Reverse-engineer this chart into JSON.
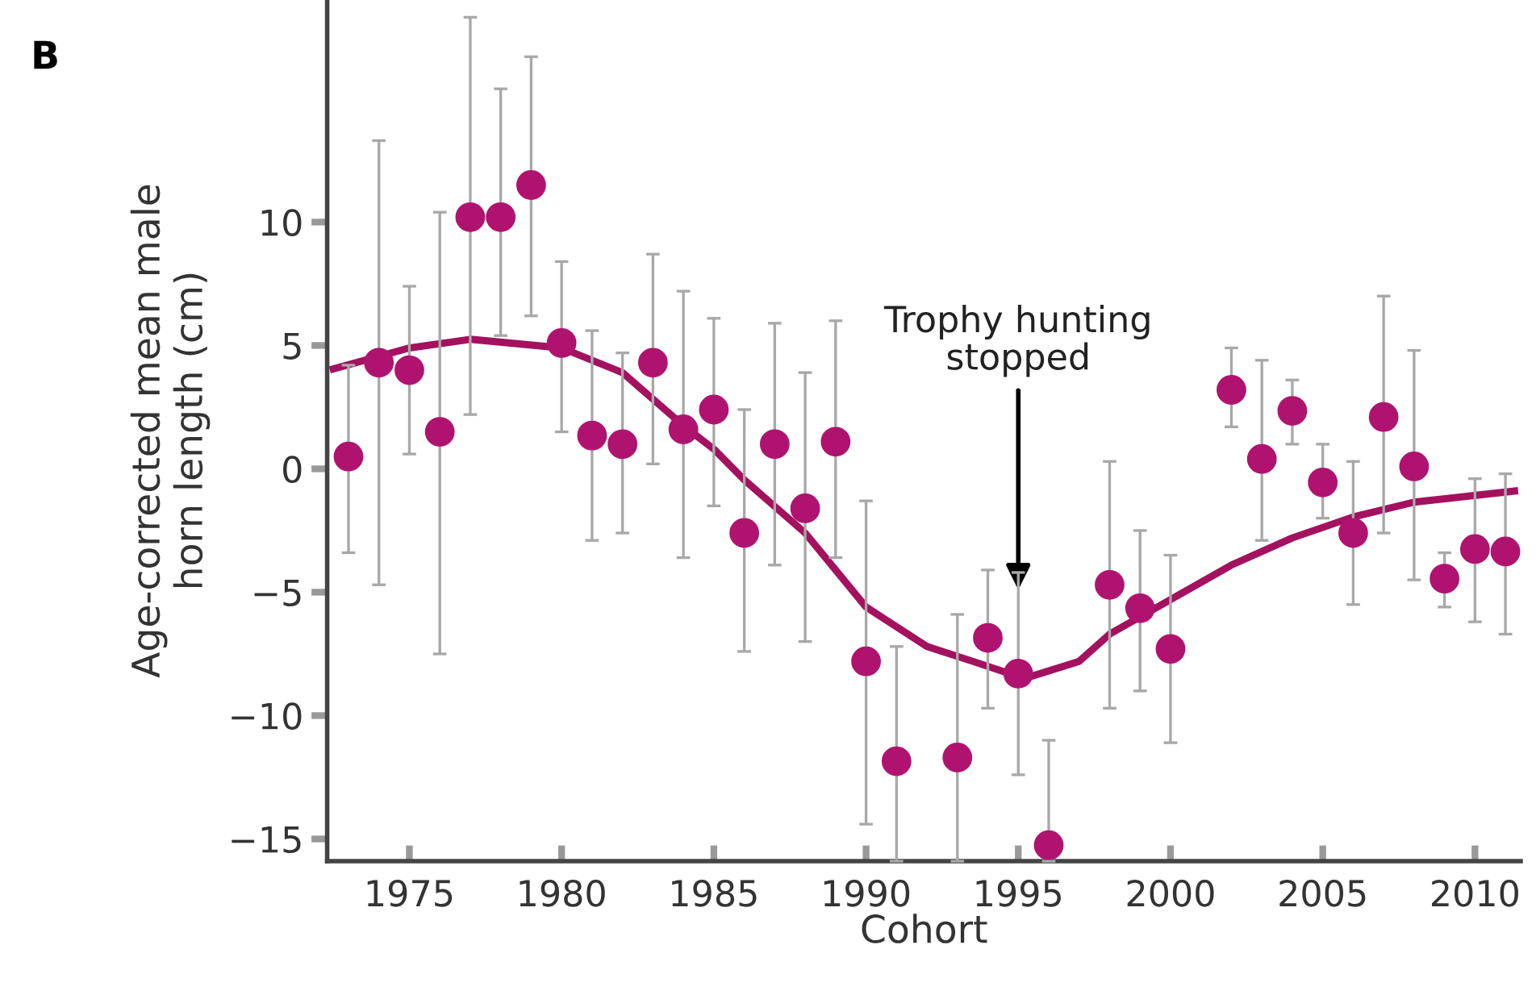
{
  "chart_data": {
    "type": "scatter",
    "xlabel": "Cohort",
    "ylabel": "Age-corrected mean male\nhorn length (cm)",
    "annotations": [
      "B",
      {
        "text": "Trophy hunting\nstopped",
        "x": 1995,
        "y": -4.9
      }
    ],
    "xlim": [
      1972.3,
      2011.5
    ],
    "ylim": [
      -15.9,
      19
    ],
    "xticks": [
      1975,
      1980,
      1985,
      1990,
      1995,
      2000,
      2005,
      2010
    ],
    "yticks": [
      {
        "value": -15,
        "label": "−15"
      },
      {
        "value": -10,
        "label": "−10"
      },
      {
        "value": -5,
        "label": "−5"
      },
      0,
      5,
      10
    ],
    "grid": false,
    "legend": false,
    "series": [
      {
        "color": "#b0136f",
        "marker": "circle",
        "x": [
          1973,
          1974,
          1975,
          1976,
          1977,
          1978,
          1979,
          1980,
          1981,
          1982,
          1983,
          1984,
          1985,
          1986,
          1987,
          1988,
          1989,
          1990,
          1991,
          1993,
          1994,
          1995,
          1996,
          1998,
          1999,
          2000,
          2002,
          2003,
          2004,
          2005,
          2006,
          2007,
          2008,
          2009,
          2010,
          2011
        ],
        "values": [
          0.5,
          4.3,
          4.0,
          1.5,
          10.2,
          10.2,
          11.5,
          5.1,
          1.35,
          1.0,
          4.3,
          1.6,
          2.4,
          -2.6,
          1.0,
          -1.6,
          1.1,
          -7.8,
          -11.85,
          -11.7,
          -6.85,
          -8.3,
          -15.25,
          -4.7,
          -5.65,
          -7.3,
          3.2,
          0.4,
          2.35,
          -0.55,
          -2.6,
          2.1,
          0.1,
          -4.45,
          -3.25,
          -3.35
        ],
        "errors": [
          [
            -3.4,
            4.2
          ],
          [
            -4.7,
            13.3
          ],
          [
            0.6,
            7.4
          ],
          [
            -7.5,
            10.4
          ],
          [
            2.2,
            18.3
          ],
          [
            5.4,
            15.4
          ],
          [
            6.2,
            16.7
          ],
          [
            1.5,
            8.4
          ],
          [
            -2.9,
            5.6
          ],
          [
            -2.6,
            4.7
          ],
          [
            0.2,
            8.7
          ],
          [
            -3.6,
            7.2
          ],
          [
            -1.5,
            6.1
          ],
          [
            -7.4,
            2.4
          ],
          [
            -3.9,
            5.9
          ],
          [
            -7.0,
            3.9
          ],
          [
            -3.6,
            6.0
          ],
          [
            -14.4,
            -1.3
          ],
          [
            -15.9,
            -7.2
          ],
          [
            -15.9,
            -5.9
          ],
          [
            -9.7,
            -4.1
          ],
          [
            -12.4,
            -4.2
          ],
          [
            -15.9,
            -11.0
          ],
          [
            -9.7,
            0.3
          ],
          [
            -9.0,
            -2.5
          ],
          [
            -11.1,
            -3.5
          ],
          [
            1.7,
            4.9
          ],
          [
            -2.9,
            4.4
          ],
          [
            1.0,
            3.6
          ],
          [
            -2.0,
            1.0
          ],
          [
            -5.5,
            0.3
          ],
          [
            -2.6,
            7.0
          ],
          [
            -4.5,
            4.8
          ],
          [
            -5.6,
            -3.4
          ],
          [
            -6.2,
            -0.4
          ],
          [
            -6.7,
            -0.2
          ]
        ]
      },
      {
        "type": "line",
        "color": "#a3115f",
        "marker": "none",
        "line_style": "solid",
        "x": [
          1972.5,
          1975,
          1977,
          1980,
          1982,
          1984,
          1985,
          1986,
          1988,
          1990,
          1992,
          1993.5,
          1995.2,
          1997,
          1998,
          2000,
          2002,
          2004,
          2006,
          2008,
          2011.3
        ],
        "values": [
          4.05,
          4.9,
          5.25,
          4.9,
          3.9,
          1.75,
          0.8,
          -0.45,
          -2.6,
          -5.6,
          -7.2,
          -7.8,
          -8.5,
          -7.8,
          -6.7,
          -5.3,
          -3.9,
          -2.8,
          -1.95,
          -1.35,
          -0.9
        ]
      }
    ]
  }
}
